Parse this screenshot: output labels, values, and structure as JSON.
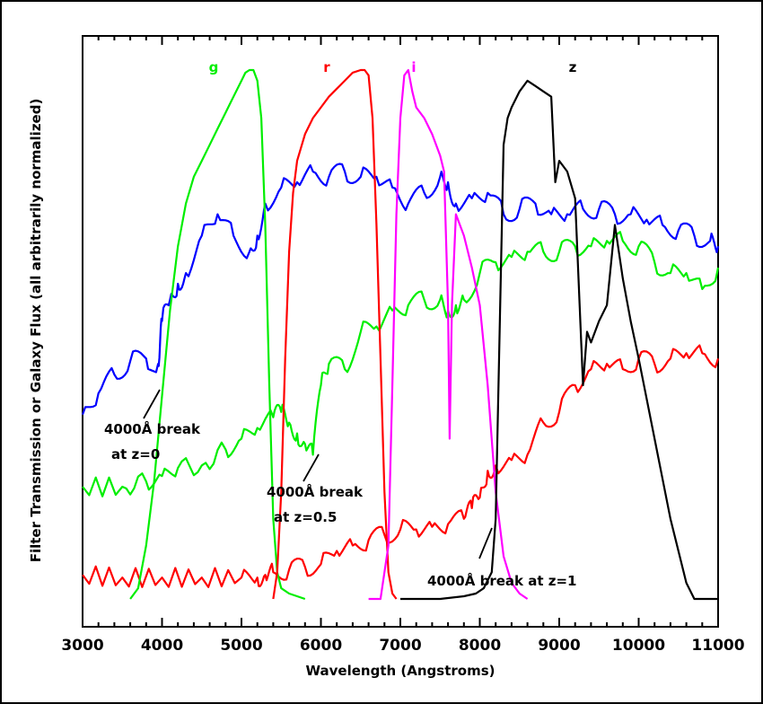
{
  "chart_data": {
    "type": "line",
    "title": "",
    "xlabel": "Wavelength (Angstroms)",
    "ylabel": "Filter Transmission or Galaxy Flux (all arbitrarily normalized)",
    "xlim": [
      3000,
      11000
    ],
    "ylim": [
      0,
      1
    ],
    "x_ticks": [
      3000,
      4000,
      5000,
      6000,
      7000,
      8000,
      9000,
      10000,
      11000
    ],
    "grid": false,
    "filters": [
      {
        "name": "g",
        "color": "#00ee00",
        "x": [
          3600,
          3700,
          3800,
          3900,
          4000,
          4100,
          4200,
          4300,
          4400,
          4500,
          4600,
          4700,
          4800,
          4900,
          5000,
          5050,
          5100,
          5150,
          5200,
          5250,
          5300,
          5350,
          5400,
          5450,
          5500,
          5600,
          5800
        ],
        "y": [
          0.0,
          0.02,
          0.1,
          0.22,
          0.38,
          0.54,
          0.66,
          0.74,
          0.79,
          0.82,
          0.85,
          0.88,
          0.91,
          0.94,
          0.97,
          0.985,
          0.99,
          0.99,
          0.97,
          0.9,
          0.7,
          0.4,
          0.15,
          0.05,
          0.02,
          0.01,
          0.0
        ]
      },
      {
        "name": "r",
        "color": "#ff0000",
        "x": [
          5400,
          5450,
          5500,
          5550,
          5600,
          5650,
          5700,
          5800,
          5900,
          6000,
          6100,
          6200,
          6300,
          6400,
          6500,
          6550,
          6600,
          6650,
          6700,
          6750,
          6800,
          6850,
          6900,
          6950
        ],
        "y": [
          0.0,
          0.05,
          0.2,
          0.45,
          0.65,
          0.76,
          0.82,
          0.87,
          0.9,
          0.92,
          0.94,
          0.955,
          0.97,
          0.985,
          0.99,
          0.99,
          0.98,
          0.9,
          0.7,
          0.45,
          0.2,
          0.05,
          0.01,
          0.0
        ]
      },
      {
        "name": "i",
        "color": "#ff00ff",
        "x": [
          6600,
          6750,
          6850,
          6900,
          6950,
          7000,
          7050,
          7100,
          7150,
          7200,
          7300,
          7400,
          7500,
          7550,
          7600,
          7620,
          7650,
          7700,
          7800,
          7900,
          8000,
          8100,
          8200,
          8300,
          8400,
          8500,
          8600
        ],
        "y": [
          0.0,
          0.0,
          0.1,
          0.4,
          0.72,
          0.9,
          0.98,
          0.99,
          0.95,
          0.92,
          0.9,
          0.87,
          0.83,
          0.8,
          0.55,
          0.3,
          0.55,
          0.72,
          0.68,
          0.62,
          0.55,
          0.4,
          0.2,
          0.08,
          0.03,
          0.01,
          0.0
        ]
      },
      {
        "name": "z",
        "color": "#000000",
        "x": [
          7000,
          7500,
          7800,
          7950,
          8050,
          8150,
          8200,
          8250,
          8300,
          8350,
          8400,
          8500,
          8600,
          8700,
          8800,
          8900,
          8950,
          9000,
          9100,
          9200,
          9300,
          9350,
          9400,
          9500,
          9600,
          9700,
          9800,
          9900,
          10000,
          10200,
          10400,
          10600,
          10700,
          11000
        ],
        "y": [
          0.0,
          0.0,
          0.005,
          0.01,
          0.02,
          0.05,
          0.15,
          0.5,
          0.85,
          0.9,
          0.92,
          0.95,
          0.97,
          0.96,
          0.95,
          0.94,
          0.78,
          0.82,
          0.8,
          0.75,
          0.4,
          0.5,
          0.48,
          0.52,
          0.55,
          0.7,
          0.6,
          0.52,
          0.45,
          0.3,
          0.15,
          0.03,
          0.0,
          0.0
        ]
      }
    ],
    "galaxy_spectra": [
      {
        "label": "z=0",
        "color": "#0000ff",
        "x": [
          3000,
          3200,
          3400,
          3600,
          3800,
          3950,
          4000,
          4100,
          4200,
          4300,
          4500,
          4700,
          4900,
          5100,
          5200,
          5300,
          5500,
          5700,
          5900,
          6100,
          6300,
          6500,
          6700,
          6900,
          7100,
          7300,
          7500,
          7600,
          7700,
          7900,
          8100,
          8300,
          8500,
          8700,
          8900,
          9100,
          9300,
          9500,
          9700,
          9900,
          10100,
          10300,
          10500,
          10700,
          10900,
          11000
        ],
        "y": [
          0.345,
          0.385,
          0.42,
          0.445,
          0.45,
          0.44,
          0.52,
          0.56,
          0.59,
          0.61,
          0.68,
          0.72,
          0.68,
          0.65,
          0.68,
          0.74,
          0.77,
          0.78,
          0.8,
          0.79,
          0.8,
          0.79,
          0.79,
          0.77,
          0.74,
          0.76,
          0.79,
          0.78,
          0.74,
          0.75,
          0.76,
          0.72,
          0.73,
          0.74,
          0.72,
          0.72,
          0.73,
          0.73,
          0.72,
          0.72,
          0.71,
          0.7,
          0.69,
          0.68,
          0.67,
          0.66
        ]
      },
      {
        "label": "z=0.5",
        "color": "#00ee00",
        "x": [
          3000,
          3500,
          3800,
          4000,
          4200,
          4500,
          4800,
          5000,
          5200,
          5400,
          5500,
          5600,
          5700,
          5800,
          5900,
          6000,
          6100,
          6300,
          6500,
          6700,
          6900,
          7100,
          7300,
          7500,
          7600,
          7700,
          7800,
          8000,
          8200,
          8400,
          8600,
          8800,
          9000,
          9200,
          9400,
          9600,
          9800,
          10000,
          10200,
          10400,
          10600,
          10800,
          11000
        ],
        "y": [
          0.21,
          0.21,
          0.22,
          0.23,
          0.245,
          0.25,
          0.28,
          0.3,
          0.32,
          0.34,
          0.35,
          0.33,
          0.31,
          0.29,
          0.27,
          0.4,
          0.44,
          0.43,
          0.5,
          0.51,
          0.54,
          0.55,
          0.56,
          0.56,
          0.54,
          0.55,
          0.56,
          0.61,
          0.63,
          0.64,
          0.65,
          0.65,
          0.65,
          0.66,
          0.66,
          0.67,
          0.67,
          0.66,
          0.63,
          0.61,
          0.61,
          0.58,
          0.62
        ]
      },
      {
        "label": "z=1",
        "color": "#ff0000",
        "x": [
          3000,
          3500,
          4000,
          4500,
          5000,
          5200,
          5300,
          5400,
          5600,
          5800,
          6000,
          6200,
          6400,
          6600,
          6800,
          7000,
          7200,
          7400,
          7600,
          7800,
          7900,
          8000,
          8100,
          8200,
          8400,
          8600,
          8800,
          9000,
          9200,
          9400,
          9600,
          9800,
          10000,
          10200,
          10400,
          10600,
          10800,
          11000
        ],
        "y": [
          0.045,
          0.04,
          0.04,
          0.04,
          0.04,
          0.04,
          0.045,
          0.05,
          0.055,
          0.06,
          0.065,
          0.09,
          0.1,
          0.11,
          0.12,
          0.13,
          0.13,
          0.135,
          0.14,
          0.15,
          0.17,
          0.19,
          0.24,
          0.25,
          0.26,
          0.27,
          0.33,
          0.35,
          0.4,
          0.43,
          0.44,
          0.43,
          0.45,
          0.44,
          0.45,
          0.46,
          0.46,
          0.45
        ]
      }
    ],
    "annotations": [
      {
        "lines": [
          "4000Å break",
          "at z=0"
        ]
      },
      {
        "lines": [
          "4000Å break",
          "at z=0.5"
        ]
      },
      {
        "lines": [
          "4000Å break at z=1"
        ]
      }
    ]
  }
}
